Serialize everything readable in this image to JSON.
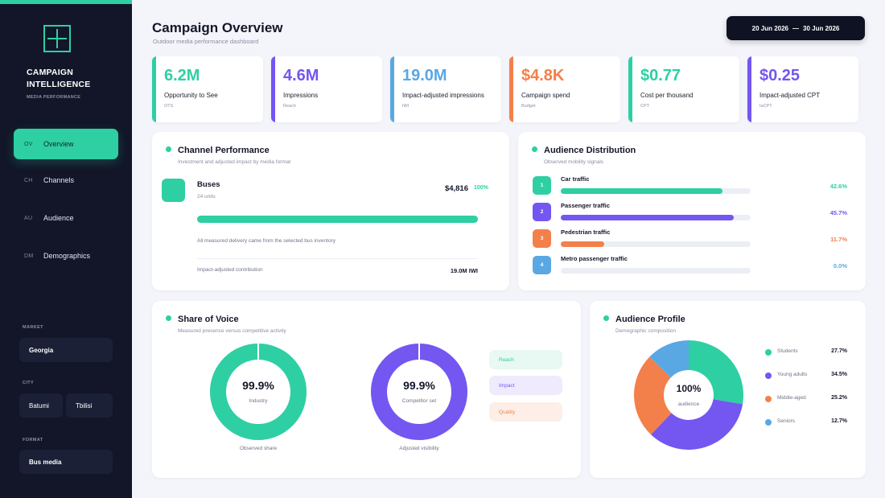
{
  "sidebar": {
    "brand_line1": "CAMPAIGN",
    "brand_line2": "INTELLIGENCE",
    "brand_sub": "MEDIA PERFORMANCE",
    "nav": [
      {
        "code": "OV",
        "label": "Overview",
        "active": true
      },
      {
        "code": "CH",
        "label": "Channels",
        "active": false
      },
      {
        "code": "AU",
        "label": "Audience",
        "active": false
      },
      {
        "code": "DM",
        "label": "Demographics",
        "active": false
      }
    ],
    "filters": {
      "market_label": "MARKET",
      "market_value": "Georgia",
      "city_label": "CITY",
      "cities": [
        "Batumi",
        "Tbilisi"
      ],
      "format_label": "FORMAT",
      "format_value": "Bus media"
    }
  },
  "header": {
    "title": "Campaign Overview",
    "subtitle": "Outdoor media performance dashboard",
    "date_start": "20 Jun 2026",
    "date_sep": "—",
    "date_end": "30 Jun 2026"
  },
  "kpis": [
    {
      "value": "6.2M",
      "name": "Opportunity to See",
      "sub": "OTS",
      "color": "#2ecfa3"
    },
    {
      "value": "4.6M",
      "name": "Impressions",
      "sub": "Reach",
      "color": "#7456f1"
    },
    {
      "value": "19.0M",
      "name": "Impact-adjusted impressions",
      "sub": "IWI",
      "color": "#59a8e3"
    },
    {
      "value": "$4.8K",
      "name": "Campaign spend",
      "sub": "Budget",
      "color": "#f3804a"
    },
    {
      "value": "$0.77",
      "name": "Cost per thousand",
      "sub": "CPT",
      "color": "#2ecfa3"
    },
    {
      "value": "$0.25",
      "name": "Impact-adjusted CPT",
      "sub": "IaCPT",
      "color": "#7456f1"
    }
  ],
  "channel": {
    "title": "Channel Performance",
    "subtitle": "Investment and adjusted impact by media format",
    "name": "Buses",
    "units": "24 units",
    "amount": "$4,816",
    "pct_label": "100%",
    "share": 1.0,
    "note": "All measured delivery came from the selected bus inventory",
    "contrib_label": "Impact-adjusted contribution",
    "contrib_value": "19.0M IWI"
  },
  "audience_dist": {
    "title": "Audience Distribution",
    "subtitle": "Observed mobility signals",
    "items": [
      {
        "num": "1",
        "name": "Car traffic",
        "pct_label": "42.6%",
        "fill": 0.85,
        "color": "#2ecfa3"
      },
      {
        "num": "2",
        "name": "Passenger traffic",
        "pct_label": "45.7%",
        "fill": 0.91,
        "color": "#7456f1"
      },
      {
        "num": "3",
        "name": "Pedestrian traffic",
        "pct_label": "11.7%",
        "fill": 0.23,
        "color": "#f3804a"
      },
      {
        "num": "4",
        "name": "Metro passenger traffic",
        "pct_label": "0.0%",
        "fill": 0.0,
        "color": "#59a8e3"
      }
    ]
  },
  "sov": {
    "title": "Share of Voice",
    "subtitle": "Measured presence versus competitive activity",
    "donuts": [
      {
        "value_label": "99.9%",
        "center_label": "Industry",
        "caption": "Observed share",
        "value": 99.9,
        "color": "#2ecfa3"
      },
      {
        "value_label": "99.9%",
        "center_label": "Competitor set",
        "caption": "Adjusted visibility",
        "value": 99.9,
        "color": "#7456f1"
      }
    ],
    "pills": [
      {
        "label": "Reach",
        "bg": "#e8f8f2",
        "fg": "#2ecfa3"
      },
      {
        "label": "Impact",
        "bg": "#efebfd",
        "fg": "#7456f1"
      },
      {
        "label": "Quality",
        "bg": "#fdeee7",
        "fg": "#f3804a"
      }
    ]
  },
  "profile": {
    "title": "Audience Profile",
    "subtitle": "Demographic composition",
    "center_value": "100%",
    "center_label": "audience",
    "chart_data": {
      "type": "pie",
      "categories": [
        "Students",
        "Young adults",
        "Middle-aged",
        "Seniors"
      ],
      "values": [
        27.7,
        34.5,
        25.2,
        12.7
      ],
      "labels": [
        "27.7%",
        "34.5%",
        "25.2%",
        "12.7%"
      ],
      "colors": [
        "#2ecfa3",
        "#7456f1",
        "#f3804a",
        "#59a8e3"
      ],
      "legend": "right"
    }
  }
}
